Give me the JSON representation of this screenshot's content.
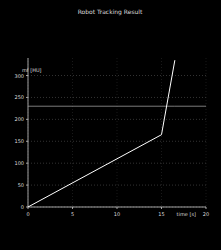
{
  "chart_data": {
    "type": "line",
    "title": "Robot Tracking Result",
    "x_label": "time [s]",
    "y_label": "mf [HU]",
    "x": [
      0,
      15,
      16.5,
      20
    ],
    "series": [
      {
        "color": "#ffffff",
        "values": [
          0,
          165,
          335,
          null
        ]
      },
      {
        "color": "#9a9a9a",
        "values": [
          230,
          230,
          230,
          230
        ]
      }
    ],
    "xlim": [
      0,
      20
    ],
    "xticks": [
      0,
      5,
      10,
      15,
      20
    ],
    "ylim": [
      0,
      340
    ],
    "yticks": [
      0,
      50,
      100,
      150,
      200,
      250,
      300
    ],
    "grid": true
  }
}
